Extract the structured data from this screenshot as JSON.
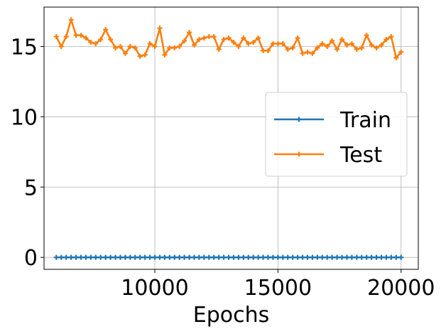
{
  "chart_data": {
    "type": "line",
    "title": "",
    "xlabel": "Epochs",
    "ylabel": "",
    "xlim": [
      5500,
      20700
    ],
    "ylim": [
      -0.85,
      17.8
    ],
    "xticks": [
      10000,
      15000,
      20000
    ],
    "xtick_labels": [
      "10000",
      "15000",
      "20000"
    ],
    "yticks": [
      0,
      5,
      10,
      15
    ],
    "ytick_labels": [
      "0",
      "5",
      "10",
      "15"
    ],
    "grid": true,
    "legend_position": "center-right",
    "x": [
      6000,
      6200,
      6400,
      6600,
      6800,
      7000,
      7200,
      7400,
      7600,
      7800,
      8000,
      8200,
      8400,
      8600,
      8800,
      9000,
      9200,
      9400,
      9600,
      9800,
      10000,
      10200,
      10400,
      10600,
      10800,
      11000,
      11200,
      11400,
      11600,
      11800,
      12000,
      12200,
      12400,
      12600,
      12800,
      13000,
      13200,
      13400,
      13600,
      13800,
      14000,
      14200,
      14400,
      14600,
      14800,
      15000,
      15200,
      15400,
      15600,
      15800,
      16000,
      16200,
      16400,
      16600,
      16800,
      17000,
      17200,
      17400,
      17600,
      17800,
      18000,
      18200,
      18400,
      18600,
      18800,
      19000,
      19200,
      19400,
      19600,
      19800,
      20000
    ],
    "series": [
      {
        "name": "Train",
        "color": "#1f77b4",
        "marker": "plus",
        "values": [
          0,
          0,
          0,
          0,
          0,
          0,
          0,
          0,
          0,
          0,
          0,
          0,
          0,
          0,
          0,
          0,
          0,
          0,
          0,
          0,
          0,
          0,
          0,
          0,
          0,
          0,
          0,
          0,
          0,
          0,
          0,
          0,
          0,
          0,
          0,
          0,
          0,
          0,
          0,
          0,
          0,
          0,
          0,
          0,
          0,
          0,
          0,
          0,
          0,
          0,
          0,
          0,
          0,
          0,
          0,
          0,
          0,
          0,
          0,
          0,
          0,
          0,
          0,
          0,
          0,
          0,
          0,
          0,
          0,
          0,
          0
        ]
      },
      {
        "name": "Test",
        "color": "#ff7f0e",
        "marker": "plus",
        "values": [
          15.7,
          15.0,
          15.7,
          16.9,
          15.8,
          15.8,
          15.6,
          15.3,
          15.2,
          15.5,
          16.2,
          15.5,
          14.9,
          15.0,
          14.5,
          15.0,
          14.9,
          14.3,
          14.4,
          15.2,
          15.0,
          16.3,
          14.4,
          14.9,
          14.9,
          15.0,
          15.4,
          16.0,
          15.1,
          15.5,
          15.6,
          15.7,
          15.7,
          14.8,
          15.5,
          15.6,
          15.3,
          15.0,
          15.6,
          15.2,
          15.3,
          15.6,
          14.7,
          14.7,
          15.2,
          15.2,
          15.2,
          14.8,
          14.9,
          15.6,
          14.5,
          14.6,
          14.5,
          14.9,
          15.2,
          15.0,
          15.4,
          14.8,
          15.5,
          15.1,
          15.2,
          14.8,
          14.9,
          15.8,
          15.1,
          14.9,
          15.1,
          15.5,
          15.7,
          14.2,
          14.6
        ]
      }
    ]
  }
}
